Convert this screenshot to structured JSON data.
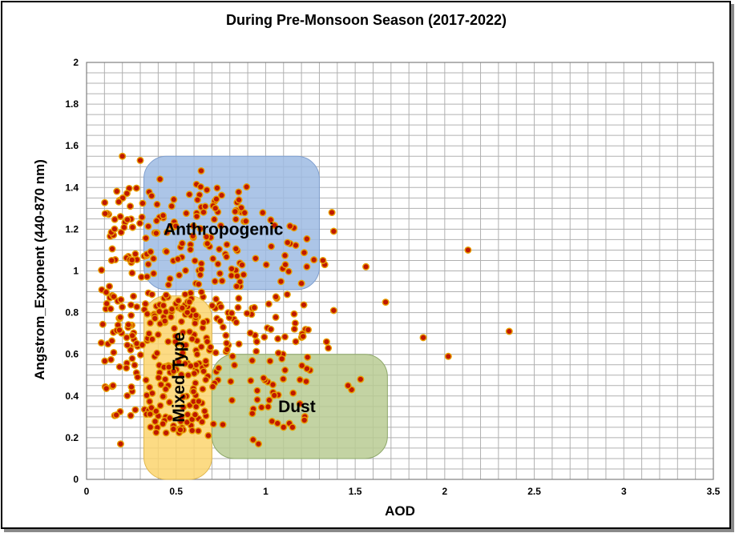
{
  "chart_data": {
    "type": "scatter",
    "title": "During Pre-Monsoon Season (2017-2022)",
    "xlabel": "AOD",
    "ylabel": "Angstrom_Exponent (440-870 nm)",
    "xlim": [
      0,
      3.5
    ],
    "ylim": [
      0,
      2
    ],
    "x_major_ticks": [
      "0",
      "0.5",
      "1",
      "1.5",
      "2",
      "2.5",
      "3",
      "3.5"
    ],
    "y_major_ticks": [
      "0",
      "0.2",
      "0.4",
      "0.6",
      "0.8",
      "1",
      "1.2",
      "1.4",
      "1.6",
      "1.8",
      "2"
    ],
    "x_minor_step": 0.1,
    "y_minor_step": 0.05,
    "grid": true,
    "legend": "none",
    "colors": {
      "point_fill": "#c01800",
      "point_stroke": "#e8a000",
      "grid": "#b0b0b0",
      "anthropogenic": "#9dbbe3",
      "mixed": "#fbd56f",
      "dust": "#b9cb93"
    },
    "regions": [
      {
        "label": "Anthropogenic",
        "x0": 0.32,
        "x1": 1.3,
        "y0": 0.91,
        "y1": 1.55
      },
      {
        "label": "Mixed Type",
        "x0": 0.32,
        "x1": 0.7,
        "y0": 0.0,
        "y1": 0.88
      },
      {
        "label": "Dust",
        "x0": 0.7,
        "x1": 1.68,
        "y0": 0.1,
        "y1": 0.6
      }
    ],
    "outlier_points": [
      [
        2.13,
        1.1
      ],
      [
        2.36,
        0.71
      ],
      [
        1.88,
        0.68
      ],
      [
        2.02,
        0.59
      ],
      [
        1.67,
        0.85
      ],
      [
        1.56,
        1.02
      ],
      [
        1.37,
        1.28
      ],
      [
        1.38,
        1.19
      ],
      [
        1.33,
        1.03
      ],
      [
        1.32,
        1.05
      ],
      [
        1.38,
        0.81
      ],
      [
        1.34,
        0.66
      ],
      [
        1.35,
        0.63
      ],
      [
        1.53,
        0.48
      ],
      [
        1.48,
        0.43
      ],
      [
        1.46,
        0.45
      ],
      [
        0.2,
        1.55
      ],
      [
        0.3,
        1.53
      ],
      [
        0.14,
        1.05
      ],
      [
        0.19,
        0.17
      ],
      [
        0.68,
        0.21
      ],
      [
        0.93,
        0.19
      ],
      [
        0.96,
        0.17
      ],
      [
        1.15,
        0.25
      ],
      [
        1.1,
        0.25
      ],
      [
        0.64,
        1.48
      ],
      [
        0.41,
        1.44
      ],
      [
        1.2,
        0.94
      ],
      [
        1.23,
        1.02
      ],
      [
        1.11,
        1.03
      ]
    ],
    "clusters": [
      {
        "x_range": [
          0.08,
          0.33
        ],
        "y_range": [
          0.3,
          1.4
        ],
        "count": 110
      },
      {
        "x_range": [
          0.33,
          0.68
        ],
        "y_range": [
          0.22,
          0.9
        ],
        "count": 170
      },
      {
        "x_range": [
          0.33,
          0.9
        ],
        "y_range": [
          0.92,
          1.42
        ],
        "count": 110
      },
      {
        "x_range": [
          0.68,
          1.25
        ],
        "y_range": [
          0.6,
          0.9
        ],
        "count": 55
      },
      {
        "x_range": [
          0.7,
          1.25
        ],
        "y_range": [
          0.25,
          0.6
        ],
        "count": 45
      },
      {
        "x_range": [
          0.9,
          1.3
        ],
        "y_range": [
          0.92,
          1.3
        ],
        "count": 18
      }
    ]
  }
}
